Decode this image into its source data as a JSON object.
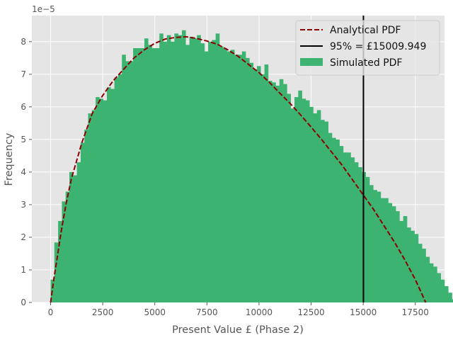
{
  "chart_data": {
    "type": "bar",
    "xlabel": "Present Value £ (Phase 2)",
    "ylabel": "Frequency",
    "y_offset_label": "1e−5",
    "y_scale": 1e-05,
    "xlim": [
      -900,
      18900
    ],
    "ylim": [
      0,
      8.8
    ],
    "x_ticks": [
      0,
      2500,
      5000,
      7500,
      10000,
      12500,
      15000,
      17500
    ],
    "y_ticks": [
      0,
      1,
      2,
      3,
      4,
      5,
      6,
      7,
      8
    ],
    "grid": true,
    "legend_position": "top-right",
    "bins": {
      "start": 0,
      "width": 180,
      "values": [
        0.7,
        1.84,
        2.5,
        3.1,
        3.4,
        4.0,
        3.9,
        4.3,
        4.9,
        5.3,
        5.8,
        5.9,
        6.3,
        6.25,
        6.2,
        6.6,
        6.55,
        6.9,
        7.0,
        7.6,
        7.4,
        7.4,
        7.8,
        7.8,
        7.8,
        8.1,
        7.9,
        7.8,
        7.8,
        8.25,
        8.0,
        8.2,
        8.0,
        8.25,
        8.2,
        8.35,
        7.9,
        8.15,
        8.1,
        8.2,
        7.95,
        7.7,
        8.0,
        8.05,
        8.25,
        7.85,
        7.8,
        7.7,
        7.75,
        7.6,
        7.6,
        7.7,
        7.5,
        7.35,
        7.15,
        7.25,
        7.0,
        7.3,
        6.8,
        6.75,
        6.65,
        6.85,
        6.7,
        6.4,
        5.95,
        6.3,
        6.5,
        6.25,
        6.2,
        6.0,
        5.8,
        5.9,
        5.6,
        5.55,
        5.2,
        5.05,
        5.0,
        4.8,
        4.6,
        4.6,
        4.45,
        4.3,
        4.15,
        4.0,
        3.85,
        3.6,
        3.45,
        3.4,
        3.2,
        3.2,
        3.05,
        2.95,
        2.8,
        2.5,
        2.65,
        2.3,
        2.2,
        2.1,
        1.8,
        1.65,
        1.4,
        1.2,
        1.1,
        0.9,
        0.7,
        0.5,
        0.3,
        0.1
      ]
    },
    "analytical_pdf": {
      "x": [
        0,
        150,
        300,
        500,
        750,
        1000,
        1500,
        2000,
        2500,
        3000,
        3500,
        4000,
        4500,
        5000,
        5500,
        6000,
        6500,
        7000,
        7500,
        8000,
        8500,
        9000,
        9500,
        10000,
        10500,
        11000,
        11500,
        12000,
        12500,
        13000,
        13500,
        14000,
        14500,
        15000,
        15500,
        16000,
        16500,
        17000,
        17500,
        18000
      ],
      "y": [
        0.0,
        0.7,
        1.3,
        2.15,
        3.05,
        3.8,
        4.9,
        5.8,
        6.35,
        6.8,
        7.15,
        7.5,
        7.75,
        7.95,
        8.08,
        8.13,
        8.15,
        8.1,
        8.02,
        7.92,
        7.75,
        7.55,
        7.3,
        7.05,
        6.75,
        6.42,
        6.1,
        5.75,
        5.38,
        5.0,
        4.6,
        4.2,
        3.75,
        3.3,
        2.85,
        2.35,
        1.85,
        1.3,
        0.7,
        0.0
      ]
    },
    "percentile_line": {
      "x": 15009.949
    },
    "colors": {
      "bars": "#3cb371",
      "analytical": "#8b0000",
      "percentile": "#000000",
      "background": "#e5e5e5",
      "grid": "#ffffff"
    },
    "series": [
      {
        "name": "Analytical PDF",
        "style": "dashed-line"
      },
      {
        "name": "95% = £15009.949",
        "style": "solid-line"
      },
      {
        "name": "Simulated PDF",
        "style": "patch"
      }
    ]
  }
}
